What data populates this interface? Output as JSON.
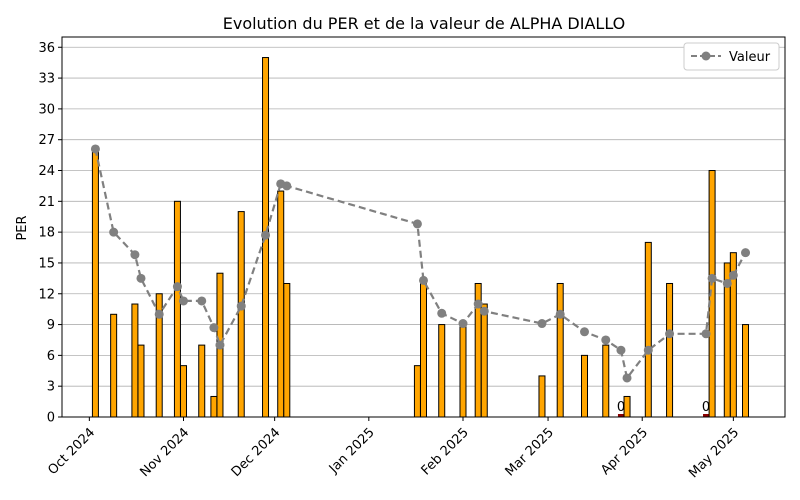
{
  "chart_data": {
    "type": "bar+line",
    "title": "Evolution du PER et de la valeur de ALPHA DIALLO",
    "ylabel": "PER",
    "xlabel": "",
    "ylim": [
      0,
      37
    ],
    "yticks": [
      0,
      3,
      6,
      9,
      12,
      15,
      18,
      21,
      24,
      27,
      30,
      33,
      36
    ],
    "grid": "y",
    "legend": {
      "position": "top-right",
      "entries": [
        "Valeur"
      ]
    },
    "x_ticks": [
      {
        "date": "2024-10-01",
        "label": "Oct 2024"
      },
      {
        "date": "2024-11-01",
        "label": "Nov 2024"
      },
      {
        "date": "2024-12-01",
        "label": "Dec 2024"
      },
      {
        "date": "2025-01-01",
        "label": "Jan 2025"
      },
      {
        "date": "2025-02-01",
        "label": "Feb 2025"
      },
      {
        "date": "2025-03-01",
        "label": "Mar 2025"
      },
      {
        "date": "2025-04-01",
        "label": "Apr 2025"
      },
      {
        "date": "2025-05-01",
        "label": "May 2025"
      }
    ],
    "x_range": [
      "2024-09-22",
      "2025-05-18"
    ],
    "bar_series": {
      "name": "PER",
      "color": "#FFA500",
      "zero_color": "#8B0000",
      "bars": [
        {
          "date": "2024-10-03",
          "value": 26
        },
        {
          "date": "2024-10-09",
          "value": 10
        },
        {
          "date": "2024-10-16",
          "value": 11
        },
        {
          "date": "2024-10-18",
          "value": 7
        },
        {
          "date": "2024-10-24",
          "value": 12
        },
        {
          "date": "2024-10-30",
          "value": 21
        },
        {
          "date": "2024-11-01",
          "value": 5
        },
        {
          "date": "2024-11-07",
          "value": 7
        },
        {
          "date": "2024-11-11",
          "value": 2
        },
        {
          "date": "2024-11-13",
          "value": 14
        },
        {
          "date": "2024-11-20",
          "value": 20
        },
        {
          "date": "2024-11-28",
          "value": 35
        },
        {
          "date": "2024-12-03",
          "value": 22
        },
        {
          "date": "2024-12-05",
          "value": 13
        },
        {
          "date": "2025-01-17",
          "value": 5
        },
        {
          "date": "2025-01-19",
          "value": 13
        },
        {
          "date": "2025-01-25",
          "value": 9
        },
        {
          "date": "2025-02-01",
          "value": 9
        },
        {
          "date": "2025-02-06",
          "value": 13
        },
        {
          "date": "2025-02-08",
          "value": 11
        },
        {
          "date": "2025-02-27",
          "value": 4
        },
        {
          "date": "2025-03-05",
          "value": 13
        },
        {
          "date": "2025-03-13",
          "value": 6
        },
        {
          "date": "2025-03-20",
          "value": 7
        },
        {
          "date": "2025-03-25",
          "value": 0,
          "label": "0"
        },
        {
          "date": "2025-03-27",
          "value": 2
        },
        {
          "date": "2025-04-03",
          "value": 17
        },
        {
          "date": "2025-04-10",
          "value": 13
        },
        {
          "date": "2025-04-22",
          "value": 0,
          "label": "0"
        },
        {
          "date": "2025-04-24",
          "value": 24
        },
        {
          "date": "2025-04-29",
          "value": 15
        },
        {
          "date": "2025-05-01",
          "value": 16
        },
        {
          "date": "2025-05-05",
          "value": 9
        }
      ]
    },
    "line_series": {
      "name": "Valeur",
      "color": "#808080",
      "style": "dashed",
      "marker": "circle",
      "points": [
        {
          "date": "2024-10-03",
          "value": 26.1
        },
        {
          "date": "2024-10-09",
          "value": 18.0
        },
        {
          "date": "2024-10-16",
          "value": 15.8
        },
        {
          "date": "2024-10-18",
          "value": 13.5
        },
        {
          "date": "2024-10-24",
          "value": 10.0
        },
        {
          "date": "2024-10-30",
          "value": 12.7
        },
        {
          "date": "2024-11-01",
          "value": 11.3
        },
        {
          "date": "2024-11-07",
          "value": 11.3
        },
        {
          "date": "2024-11-11",
          "value": 8.7
        },
        {
          "date": "2024-11-13",
          "value": 7.0
        },
        {
          "date": "2024-11-20",
          "value": 10.8
        },
        {
          "date": "2024-11-28",
          "value": 17.7
        },
        {
          "date": "2024-12-03",
          "value": 22.7
        },
        {
          "date": "2024-12-05",
          "value": 22.5
        },
        {
          "date": "2025-01-17",
          "value": 18.8
        },
        {
          "date": "2025-01-19",
          "value": 13.3
        },
        {
          "date": "2025-01-25",
          "value": 10.1
        },
        {
          "date": "2025-02-01",
          "value": 9.1
        },
        {
          "date": "2025-02-06",
          "value": 11.0
        },
        {
          "date": "2025-02-08",
          "value": 10.3
        },
        {
          "date": "2025-02-27",
          "value": 9.1
        },
        {
          "date": "2025-03-05",
          "value": 10.0
        },
        {
          "date": "2025-03-13",
          "value": 8.3
        },
        {
          "date": "2025-03-20",
          "value": 7.5
        },
        {
          "date": "2025-03-25",
          "value": 6.5
        },
        {
          "date": "2025-03-27",
          "value": 3.8
        },
        {
          "date": "2025-04-03",
          "value": 6.5
        },
        {
          "date": "2025-04-10",
          "value": 8.1
        },
        {
          "date": "2025-04-22",
          "value": 8.1
        },
        {
          "date": "2025-04-24",
          "value": 13.5
        },
        {
          "date": "2025-04-29",
          "value": 13.0
        },
        {
          "date": "2025-05-01",
          "value": 13.8
        },
        {
          "date": "2025-05-05",
          "value": 16.0
        }
      ]
    }
  }
}
